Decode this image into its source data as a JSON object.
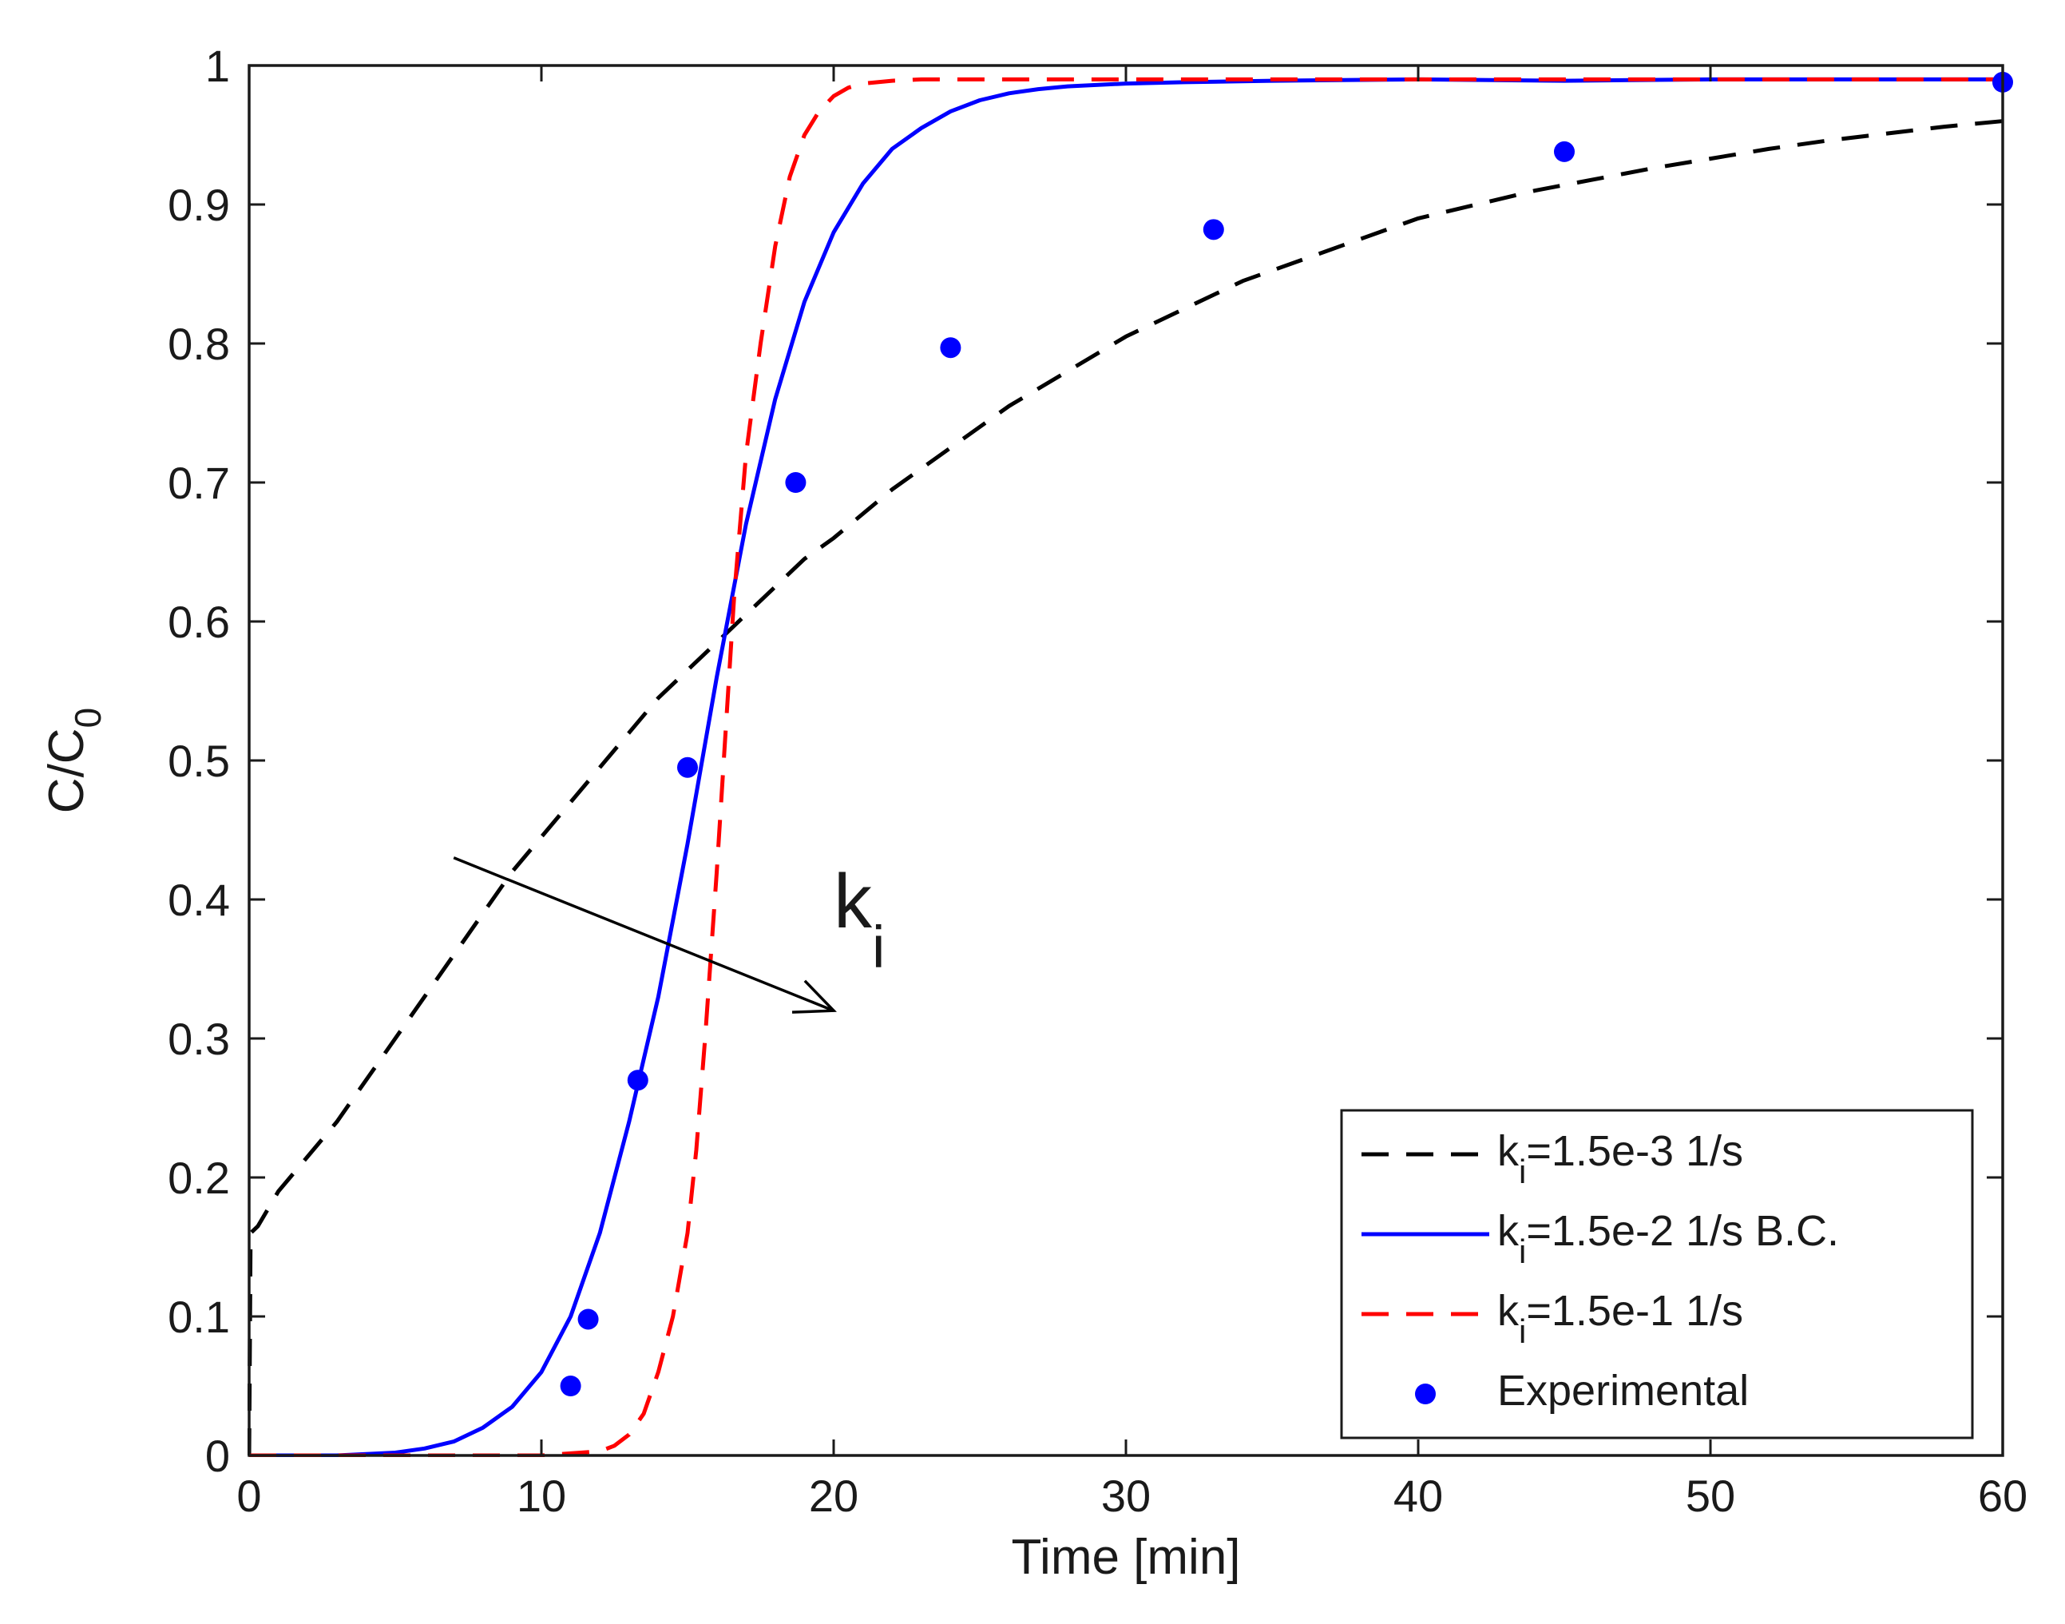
{
  "chart_data": {
    "type": "line",
    "title": "",
    "xlabel": "Time [min]",
    "ylabel": {
      "main": "C/C",
      "sub": "0"
    },
    "xlim": [
      0,
      60
    ],
    "ylim": [
      0,
      1
    ],
    "x_ticks": [
      0,
      10,
      20,
      30,
      40,
      50,
      60
    ],
    "x_tick_labels": [
      "0",
      "10",
      "20",
      "30",
      "40",
      "50",
      "60"
    ],
    "y_ticks": [
      0,
      0.1,
      0.2,
      0.3,
      0.4,
      0.5,
      0.6,
      0.7,
      0.8,
      0.9,
      1
    ],
    "y_tick_labels": [
      "0",
      "0.1",
      "0.2",
      "0.3",
      "0.4",
      "0.5",
      "0.6",
      "0.7",
      "0.8",
      "0.9",
      "1"
    ],
    "grid": false,
    "legend_position": "bottom-right",
    "series": [
      {
        "name": "k_i=1.5e-3 1/s",
        "label_main": "k",
        "label_sub": "i",
        "label_rest": "=1.5e-3 1/s",
        "style": "dashed",
        "color": "#000000",
        "x": [
          0,
          0.05,
          0.3,
          1,
          2,
          3,
          4,
          5,
          6,
          7,
          8,
          9,
          10,
          11,
          12,
          13,
          14,
          15,
          16,
          17,
          18,
          19,
          20,
          22,
          24,
          26,
          28,
          30,
          32,
          34,
          36,
          38,
          40,
          42,
          44,
          46,
          48,
          50,
          52,
          54,
          56,
          58,
          60
        ],
        "y": [
          0,
          0.16,
          0.165,
          0.19,
          0.215,
          0.24,
          0.27,
          0.3,
          0.33,
          0.36,
          0.39,
          0.42,
          0.445,
          0.47,
          0.495,
          0.52,
          0.545,
          0.565,
          0.585,
          0.605,
          0.625,
          0.645,
          0.66,
          0.695,
          0.725,
          0.755,
          0.78,
          0.805,
          0.825,
          0.845,
          0.86,
          0.875,
          0.89,
          0.9,
          0.91,
          0.918,
          0.926,
          0.933,
          0.94,
          0.946,
          0.951,
          0.956,
          0.96
        ]
      },
      {
        "name": "k_i=1.5e-2 1/s  B.C.",
        "label_main": "k",
        "label_sub": "i",
        "label_rest": "=1.5e-2 1/s  B.C.",
        "style": "solid",
        "color": "#0000ff",
        "x": [
          0,
          3,
          5,
          6,
          7,
          8,
          9,
          10,
          11,
          12,
          13,
          14,
          15,
          16,
          17,
          18,
          19,
          20,
          21,
          22,
          23,
          24,
          25,
          26,
          27,
          28,
          30,
          32,
          35,
          40,
          45,
          50,
          55,
          60
        ],
        "y": [
          0,
          0.0,
          0.002,
          0.005,
          0.01,
          0.02,
          0.035,
          0.06,
          0.1,
          0.16,
          0.24,
          0.33,
          0.44,
          0.56,
          0.67,
          0.76,
          0.83,
          0.88,
          0.915,
          0.94,
          0.955,
          0.967,
          0.975,
          0.98,
          0.983,
          0.985,
          0.987,
          0.988,
          0.989,
          0.99,
          0.989,
          0.99,
          0.99,
          0.99
        ]
      },
      {
        "name": "k_i=1.5e-1 1/s",
        "label_main": "k",
        "label_sub": "i",
        "label_rest": "=1.5e-1 1/s",
        "style": "dashed",
        "color": "#ff0000",
        "x": [
          0,
          10,
          12,
          12.5,
          13,
          13.5,
          14,
          14.5,
          15,
          15.3,
          15.6,
          16,
          16.3,
          16.6,
          17,
          17.5,
          18,
          18.5,
          19,
          19.5,
          20,
          20.5,
          21,
          22,
          23,
          25,
          30,
          40,
          50,
          60
        ],
        "y": [
          0,
          0.0,
          0.003,
          0.007,
          0.015,
          0.03,
          0.06,
          0.1,
          0.16,
          0.22,
          0.3,
          0.42,
          0.52,
          0.62,
          0.72,
          0.8,
          0.87,
          0.92,
          0.95,
          0.967,
          0.978,
          0.984,
          0.987,
          0.989,
          0.99,
          0.99,
          0.99,
          0.99,
          0.99,
          0.99
        ]
      },
      {
        "name": "Experimental",
        "label_main": "Experimental",
        "label_sub": "",
        "label_rest": "",
        "style": "markers",
        "color": "#0000ff",
        "x": [
          11,
          11.6,
          13.3,
          15,
          18.7,
          24,
          33,
          45,
          60
        ],
        "y": [
          0.05,
          0.098,
          0.27,
          0.495,
          0.7,
          0.797,
          0.882,
          0.938,
          0.988
        ]
      }
    ],
    "annotations": [
      {
        "type": "arrow",
        "text": "",
        "from": [
          7,
          0.43
        ],
        "to": [
          20,
          0.32
        ]
      },
      {
        "type": "text",
        "main": "k",
        "sub": "i",
        "at": [
          20,
          0.38
        ]
      }
    ]
  }
}
